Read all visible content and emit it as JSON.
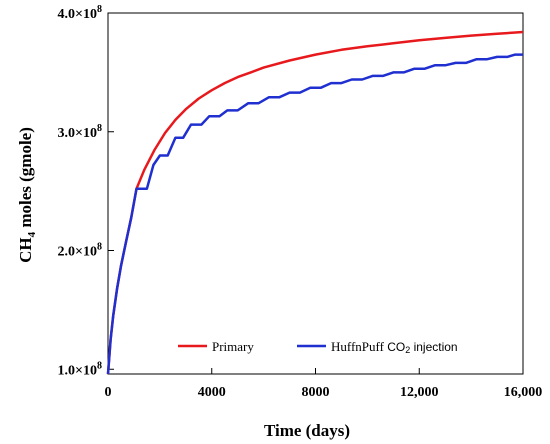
{
  "chart_data": {
    "type": "line",
    "title": "",
    "xlabel": "Time (days)",
    "ylabel_main": "CH",
    "ylabel_sub": "4",
    "ylabel_rest": " moles (gmole)",
    "xlim": [
      0,
      16000
    ],
    "ylim": [
      96000000,
      400000000
    ],
    "x_ticks": [
      {
        "value": 0,
        "label": "0"
      },
      {
        "value": 4000,
        "label": "4000"
      },
      {
        "value": 8000,
        "label": "8000"
      },
      {
        "value": 12000,
        "label": "12,000"
      },
      {
        "value": 16000,
        "label": "16,000"
      }
    ],
    "y_ticks": [
      {
        "value": 100000000,
        "base": "1.0×10",
        "exp": "8"
      },
      {
        "value": 200000000,
        "base": "2.0×10",
        "exp": "8"
      },
      {
        "value": 300000000,
        "base": "3.0×10",
        "exp": "8"
      },
      {
        "value": 400000000,
        "base": "4.0×10",
        "exp": "8"
      }
    ],
    "grid": false,
    "legend_position": "bottom",
    "series": [
      {
        "name": "Primary",
        "color": "#e8191d",
        "points": [
          [
            0,
            96000000
          ],
          [
            100,
            125000000
          ],
          [
            200,
            145000000
          ],
          [
            350,
            168000000
          ],
          [
            500,
            187000000
          ],
          [
            700,
            208000000
          ],
          [
            900,
            228000000
          ],
          [
            1100,
            252000000
          ],
          [
            1400,
            268000000
          ],
          [
            1800,
            285000000
          ],
          [
            2200,
            299000000
          ],
          [
            2600,
            310000000
          ],
          [
            3000,
            319000000
          ],
          [
            3500,
            328000000
          ],
          [
            4000,
            335000000
          ],
          [
            4500,
            341000000
          ],
          [
            5000,
            346000000
          ],
          [
            5500,
            350000000
          ],
          [
            6000,
            354000000
          ],
          [
            7000,
            360000000
          ],
          [
            8000,
            365000000
          ],
          [
            9000,
            369000000
          ],
          [
            10000,
            372000000
          ],
          [
            11000,
            374500000
          ],
          [
            12000,
            377000000
          ],
          [
            13000,
            379000000
          ],
          [
            14000,
            381000000
          ],
          [
            15000,
            382500000
          ],
          [
            16000,
            384000000
          ]
        ]
      },
      {
        "name": "HuffnPuff ",
        "name_co2_base": "CO",
        "name_co2_sub": "2",
        "name_suffix": " injection",
        "color": "#1f2fd0",
        "step": true,
        "points": [
          [
            0,
            96000000
          ],
          [
            100,
            125000000
          ],
          [
            200,
            145000000
          ],
          [
            350,
            168000000
          ],
          [
            500,
            187000000
          ],
          [
            700,
            208000000
          ],
          [
            900,
            228000000
          ],
          [
            1100,
            252000000
          ],
          [
            1500,
            252000000
          ],
          [
            1750,
            272000000
          ],
          [
            2000,
            280000000
          ],
          [
            2300,
            280000000
          ],
          [
            2600,
            295000000
          ],
          [
            2900,
            295000000
          ],
          [
            3200,
            306000000
          ],
          [
            3600,
            306000000
          ],
          [
            3900,
            313000000
          ],
          [
            4300,
            313000000
          ],
          [
            4600,
            318000000
          ],
          [
            5000,
            318000000
          ],
          [
            5400,
            324000000
          ],
          [
            5800,
            324000000
          ],
          [
            6200,
            329000000
          ],
          [
            6600,
            329000000
          ],
          [
            7000,
            333000000
          ],
          [
            7400,
            333000000
          ],
          [
            7800,
            337000000
          ],
          [
            8200,
            337000000
          ],
          [
            8600,
            341000000
          ],
          [
            9000,
            341000000
          ],
          [
            9400,
            344000000
          ],
          [
            9800,
            344000000
          ],
          [
            10200,
            347000000
          ],
          [
            10600,
            347000000
          ],
          [
            11000,
            350000000
          ],
          [
            11400,
            350000000
          ],
          [
            11800,
            353000000
          ],
          [
            12200,
            353000000
          ],
          [
            12600,
            356000000
          ],
          [
            13000,
            356000000
          ],
          [
            13400,
            358000000
          ],
          [
            13800,
            358000000
          ],
          [
            14200,
            361000000
          ],
          [
            14600,
            361000000
          ],
          [
            15000,
            363000000
          ],
          [
            15400,
            363000000
          ],
          [
            15700,
            365000000
          ],
          [
            16000,
            365000000
          ]
        ]
      }
    ]
  }
}
